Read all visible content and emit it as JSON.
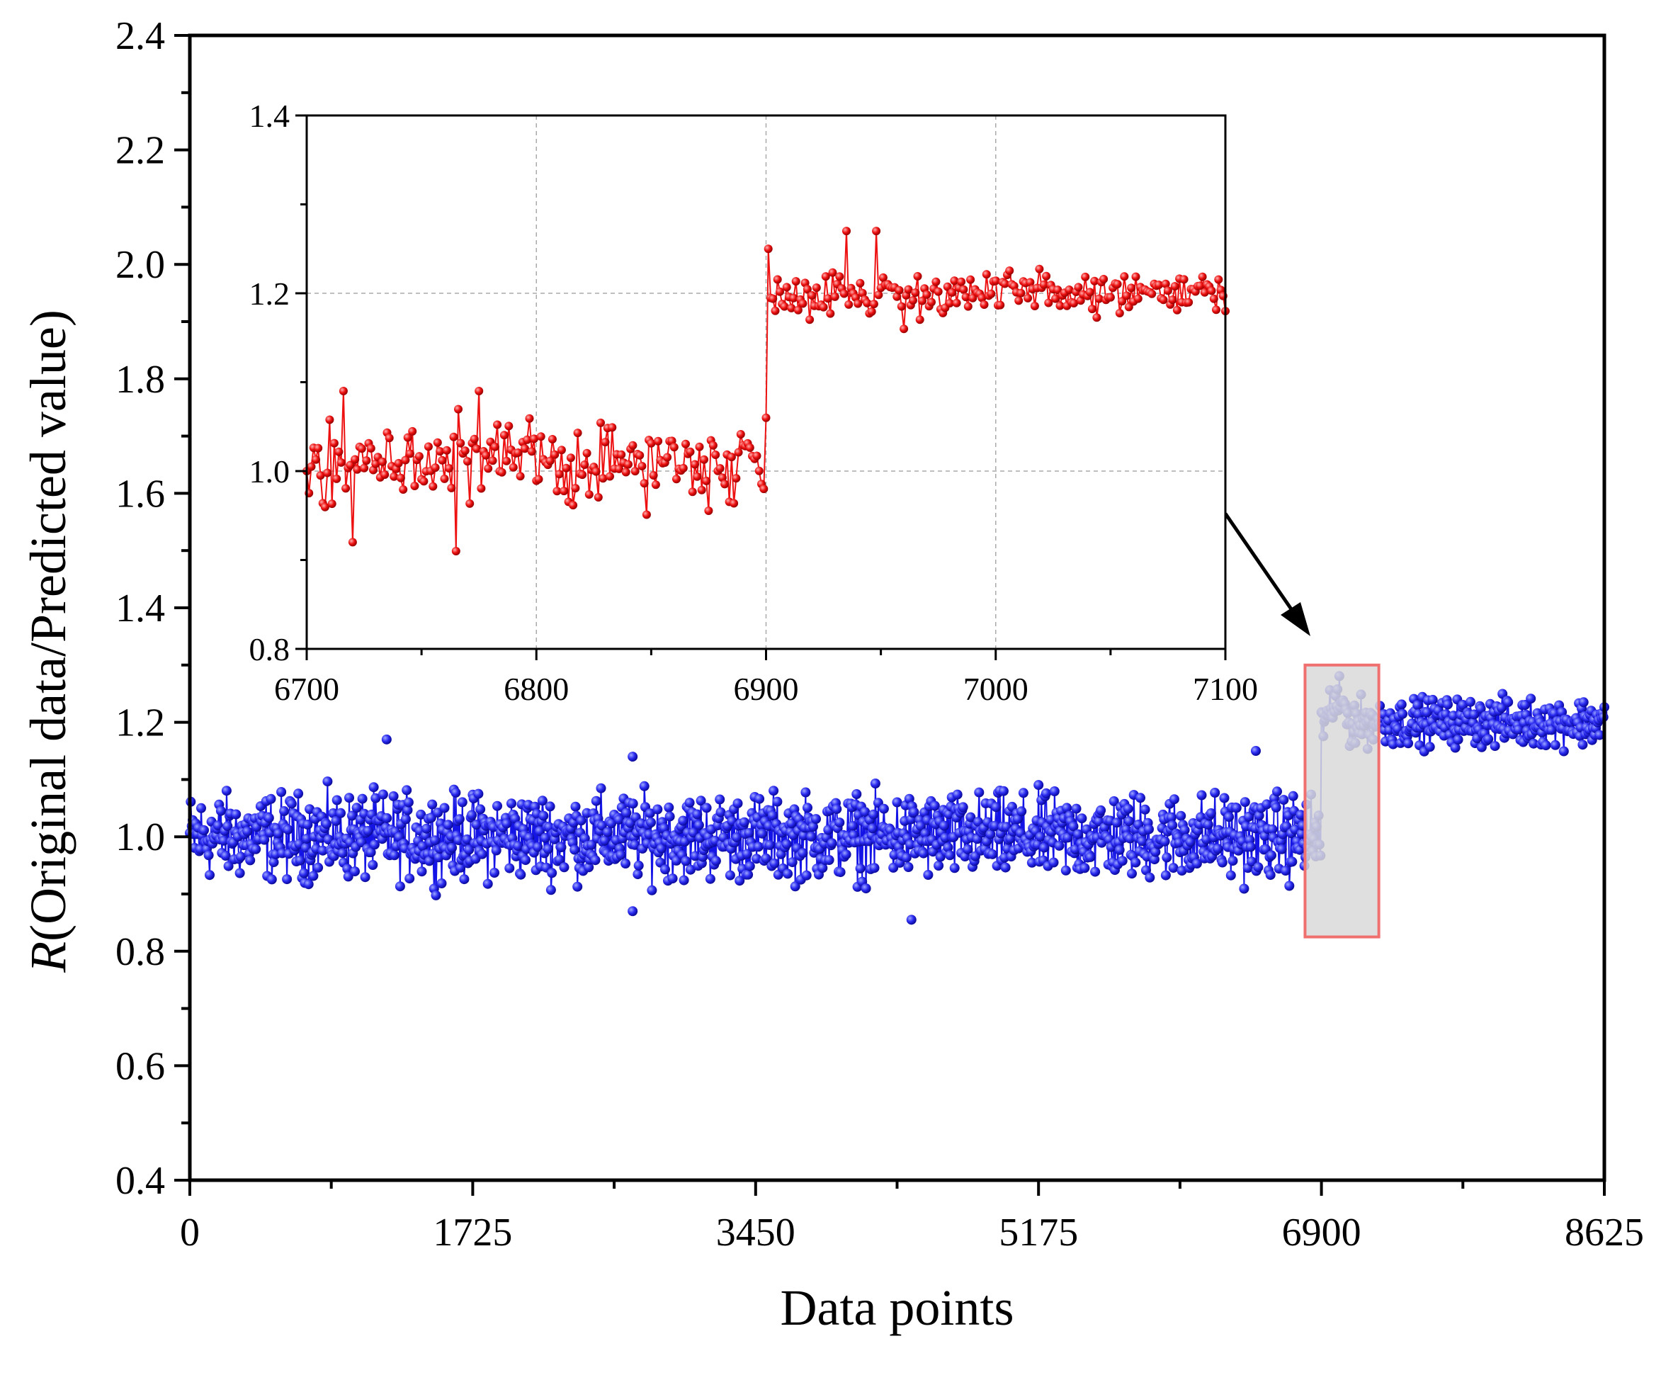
{
  "chart_data": [
    {
      "id": "main",
      "type": "scatter",
      "xlabel": "Data points",
      "ylabel_italic": "R",
      "ylabel_rest": "(Original data/Predicted value)",
      "xlim": [
        0,
        8625
      ],
      "ylim": [
        0.4,
        2.4
      ],
      "xticks": [
        0,
        1725,
        3450,
        5175,
        6900,
        8625
      ],
      "xtick_labels": [
        "0",
        "1725",
        "3450",
        "5175",
        "6900",
        "8625"
      ],
      "yticks": [
        0.4,
        0.6,
        0.8,
        1.0,
        1.2,
        1.4,
        1.6,
        1.8,
        2.0,
        2.2,
        2.4
      ],
      "ytick_labels": [
        "0.4",
        "0.6",
        "0.8",
        "1.0",
        "1.2",
        "1.4",
        "1.6",
        "1.8",
        "2.0",
        "2.2",
        "2.4"
      ],
      "grid": false,
      "series": [
        {
          "color": "#1414e6",
          "segments": [
            {
              "x_range": [
                0,
                6900
              ],
              "mean": 1.0,
              "spread": 0.09
            },
            {
              "x_range": [
                6900,
                8625
              ],
              "mean": 1.2,
              "spread": 0.05
            }
          ],
          "outliers": [
            {
              "x": 1200,
              "y": 1.17
            },
            {
              "x": 2700,
              "y": 1.14
            },
            {
              "x": 6500,
              "y": 1.15
            },
            {
              "x": 2700,
              "y": 0.87
            },
            {
              "x": 4400,
              "y": 0.855
            }
          ]
        }
      ],
      "highlight_box": {
        "x_range": [
          6800,
          7250
        ],
        "y_range": [
          0.825,
          1.3
        ],
        "fill": "#d9d9d9",
        "stroke": "#f07070"
      }
    },
    {
      "id": "inset",
      "type": "line",
      "xlim": [
        6700,
        7100
      ],
      "ylim": [
        0.8,
        1.4
      ],
      "xticks": [
        6700,
        6800,
        6900,
        7000,
        7100
      ],
      "xtick_labels": [
        "6700",
        "6800",
        "6900",
        "7000",
        "7100"
      ],
      "yticks": [
        0.8,
        1.0,
        1.2,
        1.4
      ],
      "ytick_labels": [
        "0.8",
        "1.0",
        "1.2",
        "1.4"
      ],
      "grid": true,
      "series": [
        {
          "color": "#ee1111",
          "marker": "circle",
          "segments": [
            {
              "x_range": [
                6700,
                6900
              ],
              "mean": 1.01,
              "spread": 0.055
            },
            {
              "x_range": [
                6900,
                7100
              ],
              "mean": 1.2,
              "spread": 0.03
            }
          ],
          "step_at": 6900,
          "sample_points": [
            {
              "x": 6700,
              "y": 1.0
            },
            {
              "x": 6716,
              "y": 1.09
            },
            {
              "x": 6720,
              "y": 0.92
            },
            {
              "x": 6765,
              "y": 0.91
            },
            {
              "x": 6775,
              "y": 1.09
            },
            {
              "x": 6899,
              "y": 0.98
            },
            {
              "x": 6900,
              "y": 1.06
            },
            {
              "x": 6901,
              "y": 1.25
            },
            {
              "x": 6935,
              "y": 1.27
            },
            {
              "x": 6948,
              "y": 1.27
            },
            {
              "x": 6960,
              "y": 1.16
            },
            {
              "x": 7100,
              "y": 1.18
            }
          ]
        }
      ]
    }
  ]
}
